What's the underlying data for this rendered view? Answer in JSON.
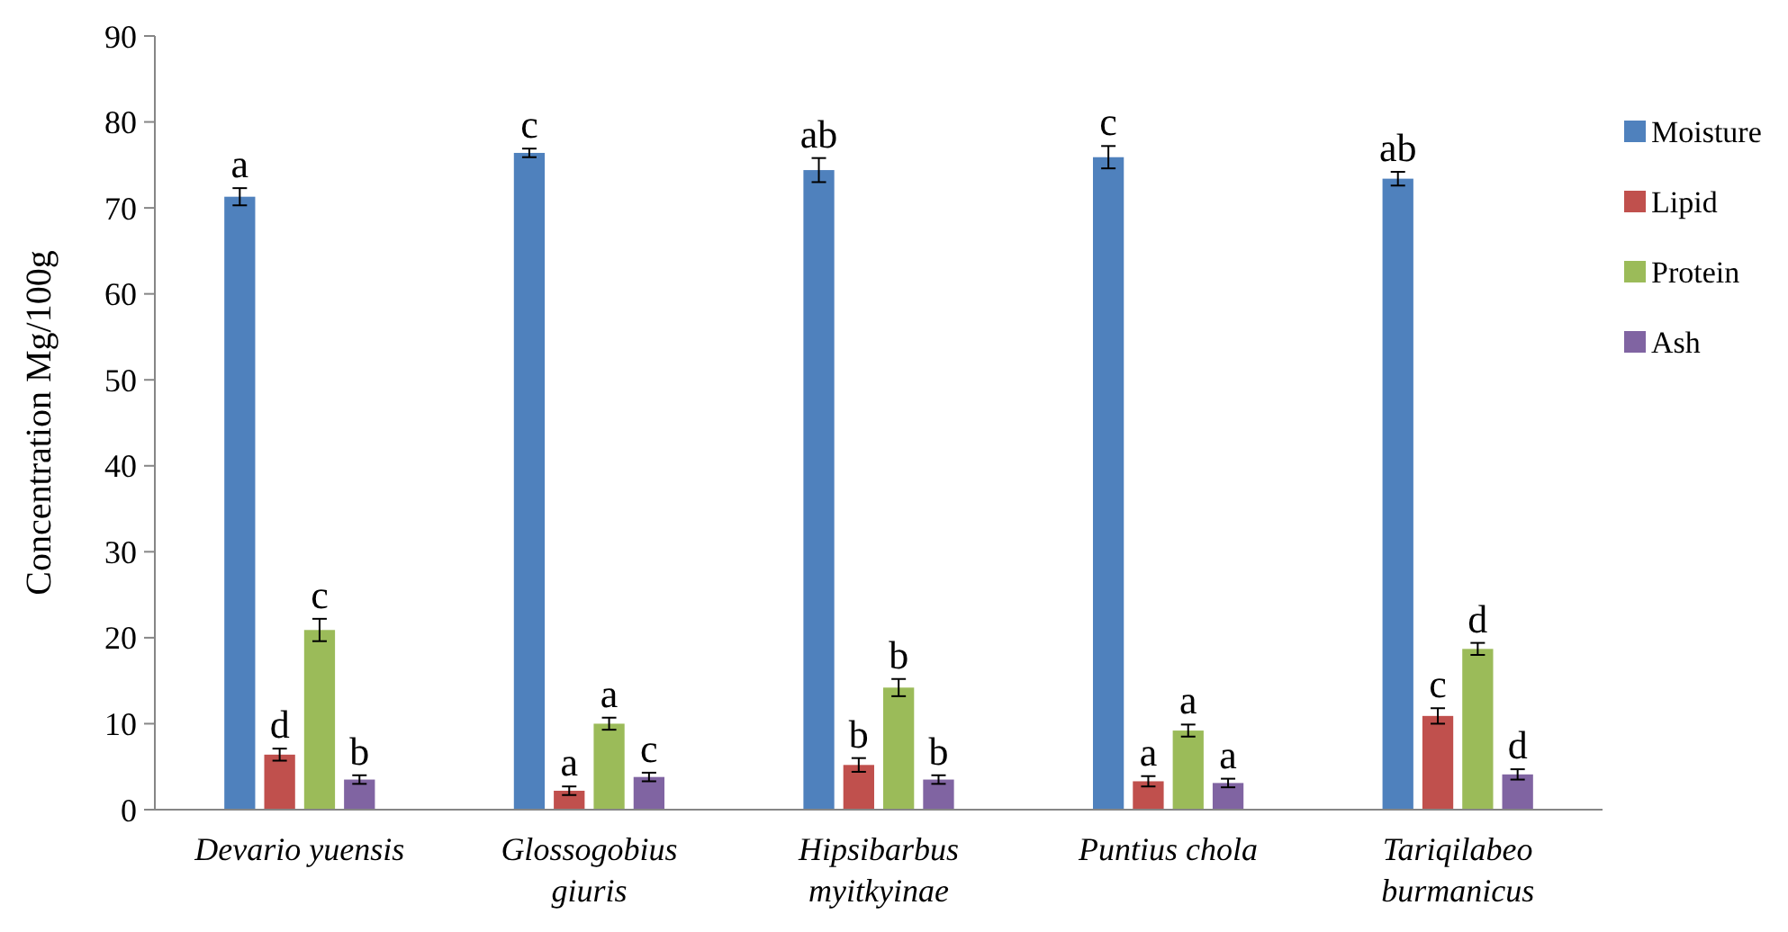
{
  "chart_data": {
    "type": "bar",
    "ylabel": "Concentration Mg/100g",
    "categories": [
      "Devario yuensis",
      "Glossogobius giuris",
      "Hipsibarbus myitkyinae",
      "Puntius chola",
      "Tariqilabeo burmanicus"
    ],
    "series": [
      {
        "name": "Moisture",
        "color": "#4f81bd",
        "values": [
          71.3,
          76.4,
          74.4,
          75.9,
          73.4
        ],
        "errors": [
          1.0,
          0.5,
          1.4,
          1.3,
          0.8
        ],
        "value_labels": [
          "a",
          "c",
          "ab",
          "c",
          "ab"
        ]
      },
      {
        "name": "Lipid",
        "color": "#c0504d",
        "values": [
          6.4,
          2.2,
          5.2,
          3.3,
          10.9
        ],
        "errors": [
          0.7,
          0.5,
          0.8,
          0.6,
          0.9
        ],
        "value_labels": [
          "d",
          "a",
          "b",
          "a",
          "c"
        ]
      },
      {
        "name": "Protein",
        "color": "#9bbb59",
        "values": [
          20.9,
          10.0,
          14.2,
          9.2,
          18.7
        ],
        "errors": [
          1.3,
          0.7,
          1.0,
          0.7,
          0.7
        ],
        "value_labels": [
          "c",
          "a",
          "b",
          "a",
          "d"
        ]
      },
      {
        "name": "Ash",
        "color": "#8064a2",
        "values": [
          3.5,
          3.8,
          3.5,
          3.1,
          4.1
        ],
        "errors": [
          0.5,
          0.5,
          0.5,
          0.5,
          0.6
        ],
        "value_labels": [
          "b",
          "c",
          "b",
          "a",
          "d"
        ]
      }
    ],
    "ylim": [
      0,
      90
    ],
    "yticks": [
      0,
      10,
      20,
      30,
      40,
      50,
      60,
      70,
      80,
      90
    ],
    "grid": false,
    "legend": "right"
  }
}
